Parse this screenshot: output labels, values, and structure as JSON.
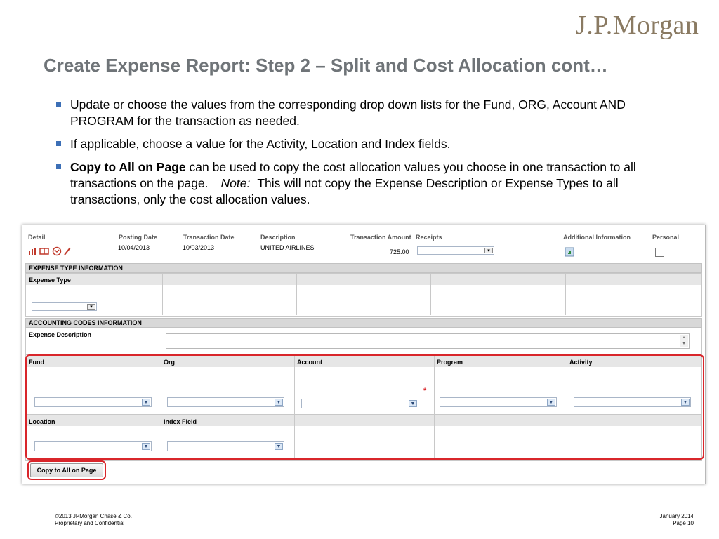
{
  "brand": {
    "logo": "J.P.Morgan"
  },
  "slide": {
    "title": "Create Expense Report: Step 2 – Split and Cost Allocation cont…",
    "bullets": [
      {
        "text": "Update or choose the values from the corresponding drop down lists for the Fund, ORG, Account AND PROGRAM for the transaction as needed."
      },
      {
        "text": "If applicable, choose a value for the Activity, Location and Index fields."
      },
      {
        "bold": "Copy to All on Page",
        "text": "can be used to copy the cost allocation values you choose in one transaction to all transactions on the page.",
        "note_label": "Note:",
        "note_text": "This will not copy the Expense Description or Expense Types to all transactions, only the cost allocation values."
      }
    ]
  },
  "screen": {
    "columns": [
      "Detail",
      "Posting Date",
      "Transaction Date",
      "Description",
      "Transaction Amount",
      "Receipts",
      "Additional Information",
      "Personal"
    ],
    "row": {
      "posting_date": "10/04/2013",
      "transaction_date": "10/03/2013",
      "description": "UNITED AIRLINES",
      "amount": "725.00"
    },
    "expense_type_section": "EXPENSE TYPE INFORMATION",
    "expense_type_label": "Expense Type",
    "accounting_section": "ACCOUNTING CODES INFORMATION",
    "expense_description_label": "Expense Description",
    "fields": {
      "fund": "Fund",
      "org": "Org",
      "account": "Account",
      "program": "Program",
      "activity": "Activity",
      "location": "Location",
      "index": "Index Field"
    },
    "required_mark": "*",
    "copy_button": "Copy to All on Page"
  },
  "footer": {
    "copyright": "©2013 JPMorgan Chase & Co.",
    "confidential": "Proprietary and Confidential",
    "date": "January 2014",
    "page": "Page 10"
  },
  "colors": {
    "title": "#6f7478",
    "bullet": "#3c6fb6",
    "highlight": "#d9262b",
    "logo": "#8a7a62"
  }
}
